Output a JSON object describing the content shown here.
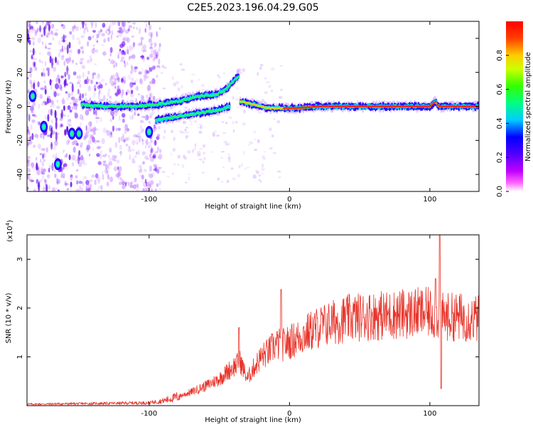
{
  "title": "C2E5.2023.196.04.29.G05",
  "chart_data": [
    {
      "type": "heatmap",
      "xlabel": "Height of straight line (km)",
      "ylabel": "Frequency (Hz)",
      "xlim": [
        -187,
        135
      ],
      "ylim": [
        -50,
        50
      ],
      "xticks": [
        -100,
        0,
        100
      ],
      "yticks": [
        -40,
        -20,
        0,
        20,
        40
      ],
      "colorbar": {
        "label": "Normalized spectral amplitude",
        "range": [
          0,
          1
        ],
        "ticks": [
          "0.0",
          "0.2",
          "0.4",
          "0.6",
          "0.8"
        ]
      },
      "ridge": {
        "description": "dominant frequency track",
        "points": [
          [
            -148,
            1
          ],
          [
            -130,
            0
          ],
          [
            -110,
            0
          ],
          [
            -95,
            1
          ],
          [
            -80,
            3
          ],
          [
            -65,
            6
          ],
          [
            -52,
            7
          ],
          [
            -45,
            10
          ],
          [
            -40,
            15
          ],
          [
            -36,
            18
          ],
          [
            -35,
            3
          ],
          [
            -25,
            1
          ],
          [
            -15,
            -1
          ],
          [
            -5,
            -1
          ],
          [
            5,
            -1
          ],
          [
            20,
            0
          ],
          [
            50,
            0
          ],
          [
            80,
            0
          ],
          [
            100,
            0
          ],
          [
            104,
            3
          ],
          [
            106,
            0
          ],
          [
            135,
            0
          ]
        ],
        "secondary": [
          [
            -95,
            -8
          ],
          [
            -80,
            -6
          ],
          [
            -65,
            -4
          ],
          [
            -50,
            -2
          ],
          [
            -42,
            0
          ]
        ],
        "blobs": [
          [
            -183,
            6
          ],
          [
            -175,
            -12
          ],
          [
            -165,
            -34
          ],
          [
            -155,
            -16
          ],
          [
            -150,
            -16
          ],
          [
            -100,
            -15
          ]
        ]
      }
    },
    {
      "type": "line",
      "xlabel": "Height of straight line (km)",
      "ylabel": "SNR (10 * v/v)",
      "yscale_label": "(x10",
      "yscale_exp": "4",
      "xlim": [
        -187,
        135
      ],
      "ylim": [
        0,
        3.5
      ],
      "xticks": [
        -100,
        0,
        100
      ],
      "yticks": [
        1,
        2,
        3
      ],
      "color": "#e8342a",
      "envelope": [
        [
          -187,
          0.03
        ],
        [
          -150,
          0.04
        ],
        [
          -120,
          0.05
        ],
        [
          -100,
          0.06
        ],
        [
          -90,
          0.1
        ],
        [
          -80,
          0.18
        ],
        [
          -70,
          0.28
        ],
        [
          -60,
          0.4
        ],
        [
          -50,
          0.55
        ],
        [
          -42,
          0.75
        ],
        [
          -35,
          0.9
        ],
        [
          -30,
          0.55
        ],
        [
          -25,
          0.8
        ],
        [
          -20,
          1.0
        ],
        [
          -15,
          1.1
        ],
        [
          -10,
          1.25
        ],
        [
          -5,
          1.25
        ],
        [
          0,
          1.3
        ],
        [
          10,
          1.45
        ],
        [
          20,
          1.6
        ],
        [
          30,
          1.7
        ],
        [
          40,
          1.78
        ],
        [
          50,
          1.82
        ],
        [
          60,
          1.85
        ],
        [
          70,
          1.85
        ],
        [
          80,
          1.88
        ],
        [
          90,
          1.9
        ],
        [
          100,
          1.9
        ],
        [
          105,
          1.85
        ],
        [
          110,
          1.82
        ],
        [
          120,
          1.82
        ],
        [
          135,
          1.78
        ]
      ],
      "spikes": [
        [
          -36,
          1.6
        ],
        [
          -6,
          2.38
        ],
        [
          104,
          2.6
        ],
        [
          107,
          3.5
        ],
        [
          108,
          0.35
        ]
      ]
    }
  ]
}
